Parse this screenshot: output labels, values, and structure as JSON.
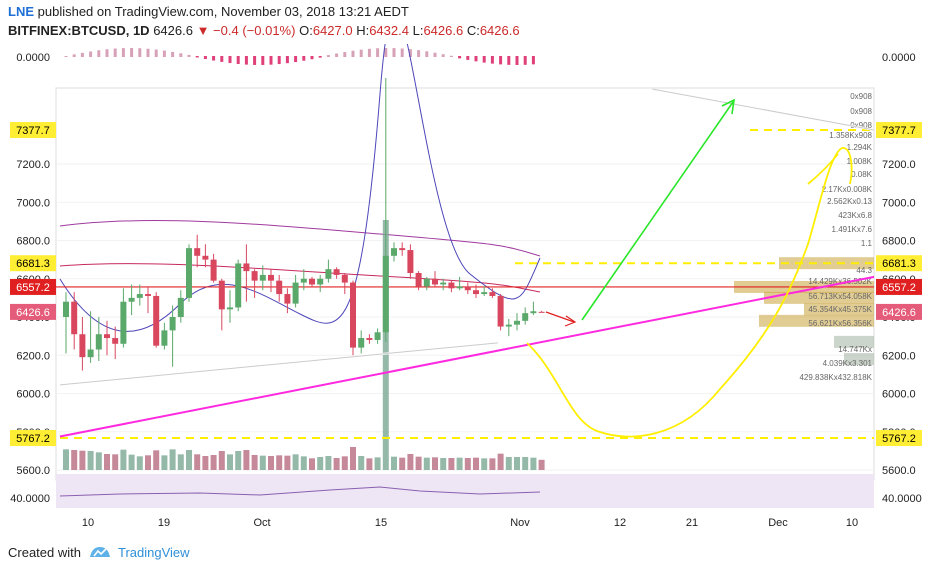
{
  "header": {
    "user": "LNE",
    "published": "published on TradingView.com, November 03, 2018 13:21 AEDT",
    "symbol": "BITFINEX:BTCUSD, 1D",
    "price": "6426.6",
    "change": "▼ −0.4 (−0.01%)",
    "ohlc": {
      "o_label": "O:",
      "o": "6427.0",
      "h_label": "H:",
      "h": "6432.4",
      "l_label": "L:",
      "l": "6426.6",
      "c_label": "C:",
      "c": "6426.6"
    }
  },
  "footer": {
    "created": "Created with",
    "brand": "TradingView"
  },
  "colors": {
    "up": "#5aa86a",
    "down": "#d9475f",
    "magenta": "#ff29e0",
    "yellow": "#ffee00",
    "green": "#29e629",
    "red_line": "#e02020",
    "vol_up": "#7aa894",
    "vol_down": "#b66b7f"
  },
  "chart_data": {
    "type": "candlestick",
    "title": "",
    "ylabel": "",
    "xlabel": "",
    "ylim": [
      5600,
      7700
    ],
    "y_ticks": [
      "7200.0",
      "7000.0",
      "6800.0",
      "6600.0",
      "6400.0",
      "6200.0",
      "6000.0",
      "5800.0",
      "5600.0"
    ],
    "x_ticks": [
      "10",
      "19",
      "Oct",
      "15",
      "Nov",
      "12",
      "21",
      "Dec",
      "10"
    ],
    "price_labels": [
      {
        "text": "7377.7",
        "value": 7377.7,
        "style": "yellow"
      },
      {
        "text": "6681.3",
        "value": 6681.3,
        "style": "yellow"
      },
      {
        "text": "6557.2",
        "value": 6557.2,
        "style": "red"
      },
      {
        "text": "6426.6",
        "value": 6426.6,
        "style": "pink"
      },
      {
        "text": "5767.2",
        "value": 5767.2,
        "style": "yellow"
      }
    ],
    "candles": [
      {
        "date": "Sep 6",
        "o": 6400,
        "h": 6530,
        "l": 6210,
        "c": 6480
      },
      {
        "date": "Sep 7",
        "o": 6480,
        "h": 6530,
        "l": 6230,
        "c": 6310
      },
      {
        "date": "Sep 8",
        "o": 6310,
        "h": 6400,
        "l": 6120,
        "c": 6190
      },
      {
        "date": "Sep 9",
        "o": 6190,
        "h": 6430,
        "l": 6160,
        "c": 6230
      },
      {
        "date": "Sep 10",
        "o": 6230,
        "h": 6400,
        "l": 6170,
        "c": 6310
      },
      {
        "date": "Sep 11",
        "o": 6310,
        "h": 6380,
        "l": 6200,
        "c": 6290
      },
      {
        "date": "Sep 12",
        "o": 6290,
        "h": 6350,
        "l": 6180,
        "c": 6260
      },
      {
        "date": "Sep 13",
        "o": 6260,
        "h": 6550,
        "l": 6240,
        "c": 6480
      },
      {
        "date": "Sep 14",
        "o": 6480,
        "h": 6570,
        "l": 6410,
        "c": 6500
      },
      {
        "date": "Sep 15",
        "o": 6500,
        "h": 6570,
        "l": 6460,
        "c": 6520
      },
      {
        "date": "Sep 16",
        "o": 6520,
        "h": 6560,
        "l": 6420,
        "c": 6510
      },
      {
        "date": "Sep 17",
        "o": 6510,
        "h": 6530,
        "l": 6240,
        "c": 6250
      },
      {
        "date": "Sep 18",
        "o": 6250,
        "h": 6370,
        "l": 6230,
        "c": 6330
      },
      {
        "date": "Sep 19",
        "o": 6330,
        "h": 6460,
        "l": 6140,
        "c": 6400
      },
      {
        "date": "Sep 20",
        "o": 6400,
        "h": 6540,
        "l": 6370,
        "c": 6500
      },
      {
        "date": "Sep 21",
        "o": 6500,
        "h": 6780,
        "l": 6480,
        "c": 6760
      },
      {
        "date": "Sep 22",
        "o": 6760,
        "h": 6830,
        "l": 6660,
        "c": 6720
      },
      {
        "date": "Sep 23",
        "o": 6720,
        "h": 6780,
        "l": 6660,
        "c": 6700
      },
      {
        "date": "Sep 24",
        "o": 6700,
        "h": 6730,
        "l": 6580,
        "c": 6590
      },
      {
        "date": "Sep 25",
        "o": 6590,
        "h": 6600,
        "l": 6330,
        "c": 6440
      },
      {
        "date": "Sep 26",
        "o": 6440,
        "h": 6540,
        "l": 6370,
        "c": 6450
      },
      {
        "date": "Sep 27",
        "o": 6450,
        "h": 6700,
        "l": 6430,
        "c": 6680
      },
      {
        "date": "Sep 28",
        "o": 6680,
        "h": 6780,
        "l": 6480,
        "c": 6640
      },
      {
        "date": "Sep 29",
        "o": 6640,
        "h": 6650,
        "l": 6500,
        "c": 6590
      },
      {
        "date": "Sep 30",
        "o": 6590,
        "h": 6670,
        "l": 6540,
        "c": 6620
      },
      {
        "date": "Oct 1",
        "o": 6620,
        "h": 6650,
        "l": 6530,
        "c": 6590
      },
      {
        "date": "Oct 2",
        "o": 6590,
        "h": 6620,
        "l": 6480,
        "c": 6520
      },
      {
        "date": "Oct 3",
        "o": 6520,
        "h": 6550,
        "l": 6420,
        "c": 6470
      },
      {
        "date": "Oct 4",
        "o": 6470,
        "h": 6620,
        "l": 6450,
        "c": 6580
      },
      {
        "date": "Oct 5",
        "o": 6580,
        "h": 6650,
        "l": 6540,
        "c": 6600
      },
      {
        "date": "Oct 6",
        "o": 6600,
        "h": 6610,
        "l": 6560,
        "c": 6570
      },
      {
        "date": "Oct 7",
        "o": 6570,
        "h": 6620,
        "l": 6530,
        "c": 6600
      },
      {
        "date": "Oct 8",
        "o": 6600,
        "h": 6700,
        "l": 6580,
        "c": 6650
      },
      {
        "date": "Oct 9",
        "o": 6650,
        "h": 6660,
        "l": 6600,
        "c": 6620
      },
      {
        "date": "Oct 10",
        "o": 6620,
        "h": 6630,
        "l": 6520,
        "c": 6580
      },
      {
        "date": "Oct 11",
        "o": 6580,
        "h": 6590,
        "l": 6200,
        "c": 6240
      },
      {
        "date": "Oct 12",
        "o": 6240,
        "h": 6330,
        "l": 6210,
        "c": 6290
      },
      {
        "date": "Oct 13",
        "o": 6290,
        "h": 6310,
        "l": 6260,
        "c": 6280
      },
      {
        "date": "Oct 14",
        "o": 6280,
        "h": 6340,
        "l": 6260,
        "c": 6320
      },
      {
        "date": "Oct 15",
        "o": 6320,
        "h": 7650,
        "l": 6270,
        "c": 6720
      },
      {
        "date": "Oct 16",
        "o": 6720,
        "h": 6790,
        "l": 6690,
        "c": 6760
      },
      {
        "date": "Oct 17",
        "o": 6760,
        "h": 6790,
        "l": 6720,
        "c": 6750
      },
      {
        "date": "Oct 18",
        "o": 6750,
        "h": 6780,
        "l": 6600,
        "c": 6630
      },
      {
        "date": "Oct 19",
        "o": 6630,
        "h": 6640,
        "l": 6540,
        "c": 6560
      },
      {
        "date": "Oct 20",
        "o": 6560,
        "h": 6610,
        "l": 6540,
        "c": 6600
      },
      {
        "date": "Oct 21",
        "o": 6600,
        "h": 6640,
        "l": 6560,
        "c": 6570
      },
      {
        "date": "Oct 22",
        "o": 6570,
        "h": 6600,
        "l": 6540,
        "c": 6580
      },
      {
        "date": "Oct 23",
        "o": 6580,
        "h": 6590,
        "l": 6530,
        "c": 6550
      },
      {
        "date": "Oct 24",
        "o": 6550,
        "h": 6610,
        "l": 6540,
        "c": 6560
      },
      {
        "date": "Oct 25",
        "o": 6560,
        "h": 6580,
        "l": 6520,
        "c": 6540
      },
      {
        "date": "Oct 26",
        "o": 6540,
        "h": 6570,
        "l": 6500,
        "c": 6520
      },
      {
        "date": "Oct 27",
        "o": 6520,
        "h": 6560,
        "l": 6510,
        "c": 6530
      },
      {
        "date": "Oct 28",
        "o": 6530,
        "h": 6550,
        "l": 6500,
        "c": 6510
      },
      {
        "date": "Oct 29",
        "o": 6510,
        "h": 6520,
        "l": 6330,
        "c": 6350
      },
      {
        "date": "Oct 30",
        "o": 6350,
        "h": 6390,
        "l": 6300,
        "c": 6360
      },
      {
        "date": "Oct 31",
        "o": 6360,
        "h": 6420,
        "l": 6330,
        "c": 6380
      },
      {
        "date": "Nov 1",
        "o": 6380,
        "h": 6450,
        "l": 6360,
        "c": 6420
      },
      {
        "date": "Nov 2",
        "o": 6420,
        "h": 6480,
        "l": 6410,
        "c": 6430
      },
      {
        "date": "Nov 3",
        "o": 6427.0,
        "h": 6432.4,
        "l": 6426.6,
        "c": 6426.6
      }
    ],
    "volume_labels": [
      "0x908",
      "0x908",
      "0x908",
      "1.358Kx908",
      "1.294K",
      "1.008K",
      "0.08K",
      "2.17Kx0.008K",
      "2.562Kx0.13",
      "423Kx6.8",
      "1.491Kx7.6",
      "1.1",
      "44.3",
      "14.429Kx36.502K",
      "56.713Kx54.058K",
      "45.354Kx45.375K",
      "56.621Kx56.356K",
      "14.747Kx",
      "4.039Kx3.301",
      "429.838Kx432.818K"
    ],
    "oscillator_top": {
      "label": "0.0000"
    },
    "oscillator_bottom": {
      "label": "40.0000"
    }
  }
}
